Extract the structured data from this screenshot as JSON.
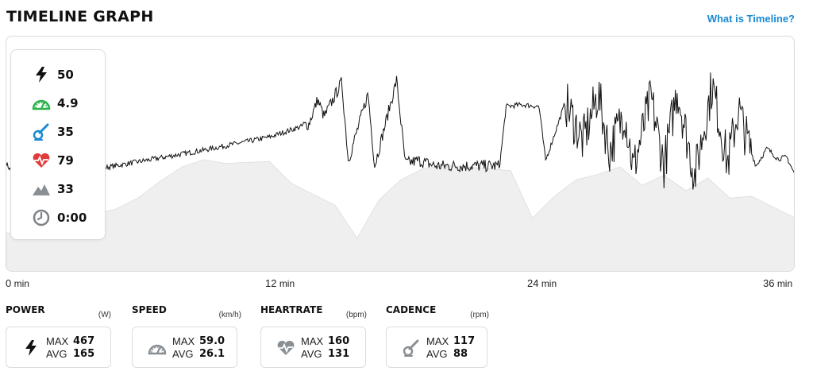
{
  "header": {
    "title": "TIMELINE GRAPH",
    "help_link": "What is Timeline?"
  },
  "legend": {
    "items": [
      {
        "icon": "lightning-bolt-icon",
        "value": "50",
        "color": "#111111"
      },
      {
        "icon": "speedometer-icon",
        "value": "4.9",
        "color": "#2bb34a"
      },
      {
        "icon": "cadence-crank-icon",
        "value": "35",
        "color": "#1a8ad1"
      },
      {
        "icon": "heart-pulse-icon",
        "value": "79",
        "color": "#e23b3b"
      },
      {
        "icon": "mountain-elevation-icon",
        "value": "33",
        "color": "#8a8f93"
      },
      {
        "icon": "clock-icon",
        "value": "0:00",
        "color": "#7d8286"
      }
    ]
  },
  "x_axis": {
    "ticks": [
      {
        "num": "0",
        "unit": "min"
      },
      {
        "num": "12",
        "unit": "min"
      },
      {
        "num": "24",
        "unit": "min"
      },
      {
        "num": "36",
        "unit": "min"
      }
    ]
  },
  "stats": [
    {
      "name": "POWER",
      "unit": "(W)",
      "icon": "lightning-bolt-icon",
      "max_label": "MAX",
      "max": "467",
      "avg_label": "AVG",
      "avg": "165"
    },
    {
      "name": "SPEED",
      "unit": "(km/h)",
      "icon": "speedometer-icon",
      "max_label": "MAX",
      "max": "59.0",
      "avg_label": "AVG",
      "avg": "26.1"
    },
    {
      "name": "HEARTRATE",
      "unit": "(bpm)",
      "icon": "heart-pulse-icon",
      "max_label": "MAX",
      "max": "160",
      "avg_label": "AVG",
      "avg": "131"
    },
    {
      "name": "CADENCE",
      "unit": "(rpm)",
      "icon": "cadence-crank-icon",
      "max_label": "MAX",
      "max": "117",
      "avg_label": "AVG",
      "avg": "88"
    }
  ],
  "colors": {
    "accent": "#1a8ad1",
    "line": "#111111",
    "elevation_fill": "#efefef",
    "border": "#d9d9d9"
  },
  "chart_data": {
    "type": "area",
    "x_unit": "min",
    "xlim": [
      0,
      36
    ],
    "x_ticks": [
      0,
      12,
      24,
      36
    ],
    "grid": false,
    "series": [
      {
        "kind": "elevation-area",
        "x": [
          0,
          1,
          2,
          3,
          4,
          5,
          6,
          7,
          8,
          9,
          10,
          11,
          12,
          13,
          14,
          15,
          16,
          17,
          18,
          19,
          20,
          21,
          22,
          23,
          24,
          25,
          26,
          27,
          28,
          29,
          30,
          31,
          32,
          33,
          34,
          35,
          36
        ],
        "values": [
          20,
          18,
          26,
          36,
          40,
          46,
          58,
          76,
          92,
          100,
          96,
          97,
          98,
          74,
          62,
          50,
          14,
          56,
          78,
          90,
          94,
          92,
          90,
          88,
          36,
          60,
          78,
          84,
          92,
          72,
          83,
          66,
          80,
          58,
          60,
          48,
          36
        ]
      },
      {
        "kind": "power-line",
        "x": [
          0,
          0.3,
          0.6,
          4.5,
          9,
          12,
          13.8,
          14.2,
          14.5,
          15.3,
          15.6,
          16.5,
          16.8,
          17.8,
          18.2,
          18.8,
          19.6,
          22.5,
          22.8,
          23.5,
          24.3,
          24.6,
          25.5,
          26.3,
          27,
          27.5,
          28.2,
          28.6,
          29.4,
          30,
          30.6,
          31.4,
          32.2,
          32.9,
          33.4,
          33.8,
          34.2,
          34.7,
          35.2,
          35.6,
          36
        ],
        "values": [
          125,
          112,
          108,
          120,
          140,
          155,
          170,
          198,
          178,
          218,
          128,
          205,
          122,
          220,
          125,
          128,
          122,
          122,
          190,
          192,
          190,
          128,
          195,
          150,
          205,
          138,
          185,
          118,
          200,
          122,
          210,
          110,
          215,
          125,
          188,
          150,
          122,
          142,
          130,
          132,
          110
        ]
      }
    ]
  }
}
